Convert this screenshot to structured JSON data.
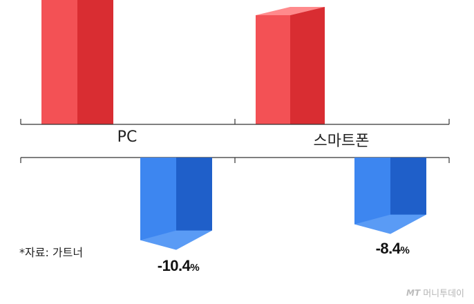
{
  "chart_data": {
    "type": "bar",
    "categories": [
      "PC",
      "스마트폰"
    ],
    "series": [
      {
        "values": [
          null,
          null
        ],
        "color": "#e8383d"
      },
      {
        "values": [
          -10.4,
          -8.4
        ],
        "color": "#2a6fde"
      }
    ],
    "value_labels": {
      "pc_decline": "-10.4",
      "smartphone_decline": "-8.4",
      "unit": "%"
    },
    "colors": {
      "positive": "#e8383d",
      "negative": "#2a6fde"
    }
  },
  "source_note": "*자료: 가트너",
  "watermark": {
    "logo": "MT",
    "brand": "머니투데이"
  }
}
